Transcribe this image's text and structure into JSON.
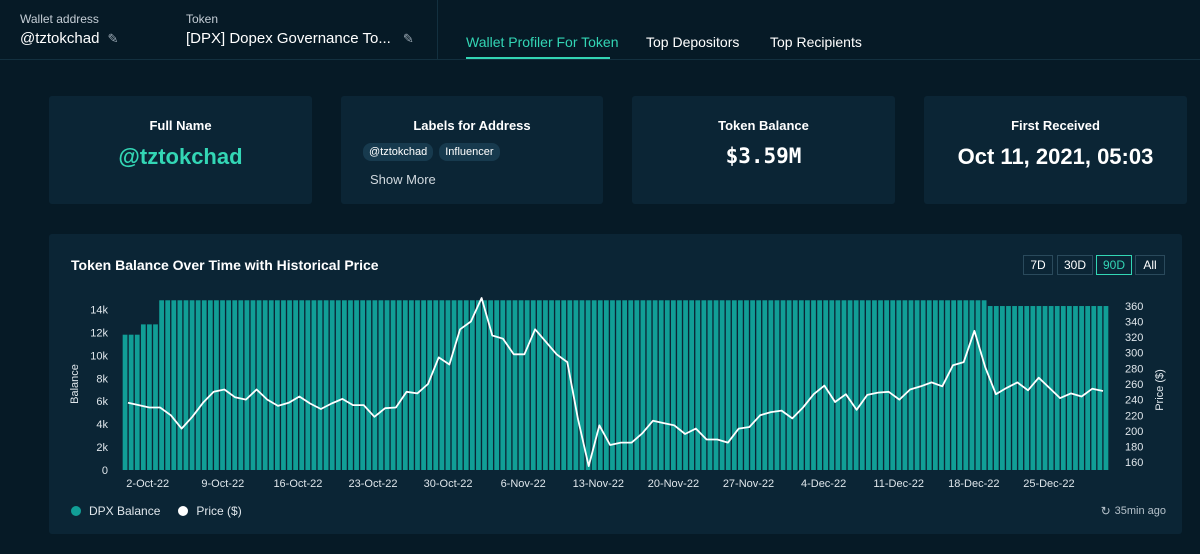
{
  "header": {
    "wallet_label": "Wallet address",
    "wallet_value": "@tztokchad",
    "token_label": "Token",
    "token_value": "[DPX] Dopex Governance To...",
    "tabs": [
      {
        "label": "Wallet Profiler For Token",
        "active": true
      },
      {
        "label": "Top Depositors",
        "active": false
      },
      {
        "label": "Top Recipients",
        "active": false
      }
    ]
  },
  "cards": {
    "full_name": {
      "title": "Full Name",
      "value": "@tztokchad"
    },
    "labels": {
      "title": "Labels for Address",
      "chips": [
        "@tztokchad",
        "Influencer"
      ],
      "show_more": "Show More"
    },
    "balance": {
      "title": "Token Balance",
      "value": "$3.59M"
    },
    "first_received": {
      "title": "First Received",
      "value": "Oct 11, 2021, 05:03"
    }
  },
  "panel": {
    "title": "Token Balance Over Time with Historical Price",
    "ranges": [
      "7D",
      "30D",
      "90D",
      "All"
    ],
    "active_range": "90D",
    "updated": "35min ago"
  },
  "colors": {
    "accent": "#33d6b5",
    "bar": "#119e96",
    "line": "#ffffff"
  },
  "chart_data": {
    "type": "bar",
    "title": "Token Balance Over Time with Historical Price",
    "ylabel": "Balance",
    "y2label": "Price ($)",
    "ylim": [
      0,
      15000
    ],
    "y2lim": [
      150,
      370
    ],
    "y_ticks": [
      "0",
      "2k",
      "4k",
      "6k",
      "8k",
      "10k",
      "12k",
      "14k"
    ],
    "y2_ticks": [
      "160",
      "180",
      "200",
      "220",
      "240",
      "260",
      "280",
      "300",
      "320",
      "340",
      "360"
    ],
    "x_tick_labels": [
      "2-Oct-22",
      "9-Oct-22",
      "16-Oct-22",
      "23-Oct-22",
      "30-Oct-22",
      "6-Nov-22",
      "13-Nov-22",
      "20-Nov-22",
      "27-Nov-22",
      "4-Dec-22",
      "11-Dec-22",
      "18-Dec-22",
      "25-Dec-22"
    ],
    "series": [
      {
        "name": "DPX Balance",
        "type": "bar",
        "values": [
          11800,
          11800,
          11800,
          12700,
          12700,
          12700,
          14800,
          14800,
          14800,
          14800,
          14800,
          14800,
          14800,
          14800,
          14800,
          14800,
          14800,
          14800,
          14800,
          14800,
          14800,
          14800,
          14800,
          14800,
          14800,
          14800,
          14800,
          14800,
          14800,
          14800,
          14800,
          14800,
          14800,
          14800,
          14800,
          14800,
          14800,
          14800,
          14800,
          14800,
          14800,
          14800,
          14800,
          14800,
          14800,
          14800,
          14800,
          14800,
          14800,
          14800,
          14800,
          14800,
          14800,
          14800,
          14800,
          14800,
          14800,
          14800,
          14800,
          14800,
          14800,
          14800,
          14800,
          14800,
          14800,
          14800,
          14800,
          14800,
          14800,
          14800,
          14800,
          14800,
          14800,
          14800,
          14800,
          14800,
          14800,
          14800,
          14800,
          14800,
          14800,
          14800,
          14800,
          14800,
          14800,
          14800,
          14800,
          14800,
          14800,
          14800,
          14800,
          14800,
          14800,
          14800,
          14800,
          14800,
          14800,
          14800,
          14800,
          14800,
          14800,
          14800,
          14800,
          14800,
          14800,
          14800,
          14800,
          14800,
          14800,
          14800,
          14800,
          14800,
          14800,
          14800,
          14800,
          14800,
          14800,
          14800,
          14800,
          14800,
          14800,
          14800,
          14800,
          14800,
          14800,
          14800,
          14800,
          14800,
          14800,
          14800,
          14800,
          14800,
          14800,
          14800,
          14800,
          14800,
          14800,
          14800,
          14800,
          14800,
          14800,
          14800,
          14300,
          14300,
          14300,
          14300,
          14300,
          14300,
          14300,
          14300,
          14300,
          14300,
          14300,
          14300,
          14300,
          14300,
          14300,
          14300,
          14300,
          14300,
          14300,
          14300
        ]
      },
      {
        "name": "Price ($)",
        "type": "line",
        "values": [
          236,
          233,
          230,
          230,
          220,
          203,
          218,
          236,
          250,
          253,
          243,
          240,
          253,
          240,
          232,
          236,
          244,
          235,
          228,
          235,
          241,
          233,
          233,
          218,
          229,
          230,
          250,
          248,
          260,
          294,
          285,
          330,
          340,
          370,
          322,
          318,
          298,
          298,
          330,
          314,
          298,
          288,
          215,
          155,
          207,
          182,
          185,
          185,
          197,
          213,
          210,
          207,
          196,
          203,
          189,
          189,
          185,
          203,
          205,
          220,
          224,
          226,
          216,
          230,
          247,
          258,
          237,
          247,
          227,
          246,
          249,
          250,
          240,
          253,
          257,
          262,
          257,
          284,
          288,
          328,
          282,
          247,
          255,
          262,
          252,
          268,
          255,
          242,
          248,
          244,
          254,
          251
        ]
      }
    ]
  }
}
